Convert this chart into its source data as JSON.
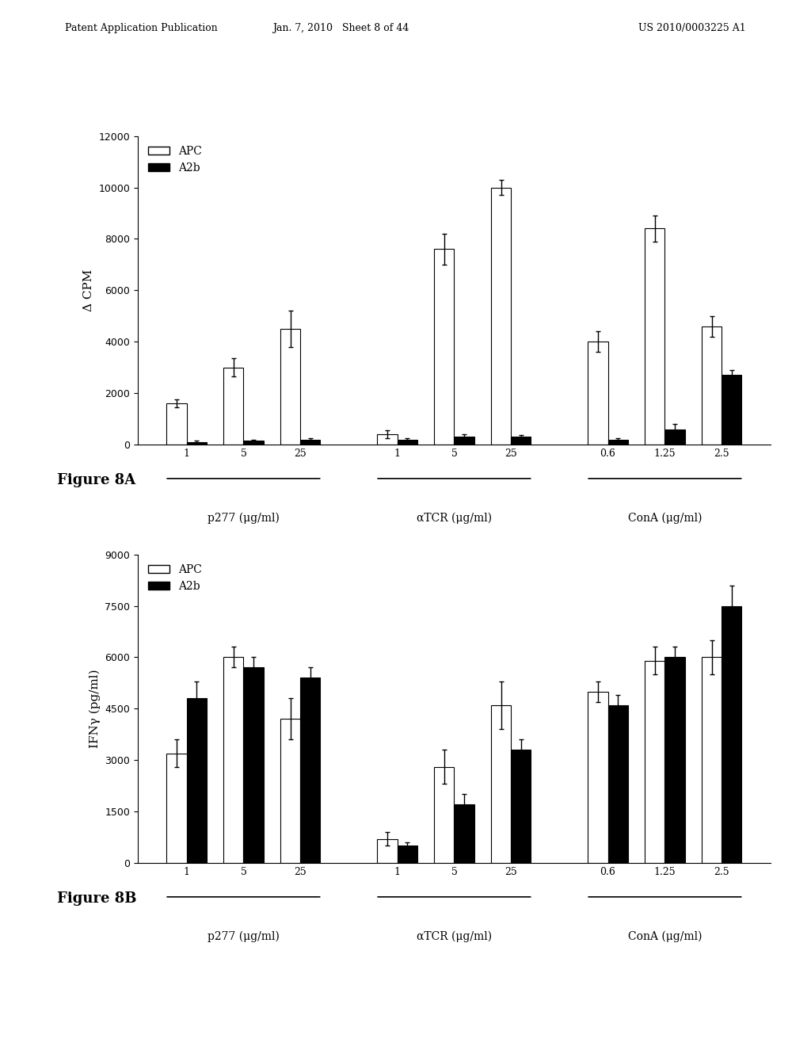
{
  "fig8A": {
    "title": "",
    "ylabel": "Δ CPM",
    "ylim": [
      0,
      12000
    ],
    "yticks": [
      0,
      2000,
      4000,
      6000,
      8000,
      10000,
      12000
    ],
    "groups": [
      {
        "label": "1",
        "APC": 1600,
        "A2b": 100,
        "APC_err": 150,
        "A2b_err": 50
      },
      {
        "label": "5",
        "APC": 3000,
        "A2b": 150,
        "APC_err": 350,
        "A2b_err": 50
      },
      {
        "label": "25",
        "APC": 4500,
        "A2b": 200,
        "APC_err": 700,
        "A2b_err": 50
      },
      {
        "label": "1",
        "APC": 400,
        "A2b": 200,
        "APC_err": 150,
        "A2b_err": 50
      },
      {
        "label": "5",
        "APC": 7600,
        "A2b": 300,
        "APC_err": 600,
        "A2b_err": 100
      },
      {
        "label": "25",
        "APC": 10000,
        "A2b": 300,
        "APC_err": 300,
        "A2b_err": 80
      },
      {
        "label": "0.6",
        "APC": 4000,
        "A2b": 200,
        "APC_err": 400,
        "A2b_err": 60
      },
      {
        "label": "1.25",
        "APC": 8400,
        "A2b": 600,
        "APC_err": 500,
        "A2b_err": 200
      },
      {
        "label": "2.5",
        "APC": 4600,
        "A2b": 2700,
        "APC_err": 400,
        "A2b_err": 200
      }
    ],
    "group_labels": [
      "p277 (μg/ml)",
      "αTCR (μg/ml)",
      "ConA (μg/ml)"
    ],
    "group_sizes": [
      3,
      3,
      3
    ],
    "group_tick_labels": [
      [
        "1",
        "5",
        "25"
      ],
      [
        "1",
        "5",
        "25"
      ],
      [
        "0.6",
        "1.25",
        "2.5"
      ]
    ],
    "figure_label": "Figure 8A"
  },
  "fig8B": {
    "title": "",
    "ylabel": "IFNγ (pg/ml)",
    "ylim": [
      0,
      9000
    ],
    "yticks": [
      0,
      1500,
      3000,
      4500,
      6000,
      7500,
      9000
    ],
    "groups": [
      {
        "label": "1",
        "APC": 3200,
        "A2b": 4800,
        "APC_err": 400,
        "A2b_err": 500
      },
      {
        "label": "5",
        "APC": 6000,
        "A2b": 5700,
        "APC_err": 300,
        "A2b_err": 300
      },
      {
        "label": "25",
        "APC": 4200,
        "A2b": 5400,
        "APC_err": 600,
        "A2b_err": 300
      },
      {
        "label": "1",
        "APC": 700,
        "A2b": 500,
        "APC_err": 200,
        "A2b_err": 100
      },
      {
        "label": "5",
        "APC": 2800,
        "A2b": 1700,
        "APC_err": 500,
        "A2b_err": 300
      },
      {
        "label": "25",
        "APC": 4600,
        "A2b": 3300,
        "APC_err": 700,
        "A2b_err": 300
      },
      {
        "label": "0.6",
        "APC": 5000,
        "A2b": 4600,
        "APC_err": 300,
        "A2b_err": 300
      },
      {
        "label": "1.25",
        "APC": 5900,
        "A2b": 6000,
        "APC_err": 400,
        "A2b_err": 300
      },
      {
        "label": "2.5",
        "APC": 6000,
        "A2b": 7500,
        "APC_err": 500,
        "A2b_err": 600
      }
    ],
    "group_labels": [
      "p277 (μg/ml)",
      "αTCR (μg/ml)",
      "ConA (μg/ml)"
    ],
    "group_sizes": [
      3,
      3,
      3
    ],
    "group_tick_labels": [
      [
        "1",
        "5",
        "25"
      ],
      [
        "1",
        "5",
        "25"
      ],
      [
        "0.6",
        "1.25",
        "2.5"
      ]
    ],
    "figure_label": "Figure 8B"
  },
  "header_left": "Patent Application Publication",
  "header_mid": "Jan. 7, 2010   Sheet 8 of 44",
  "header_right": "US 2010/0003225 A1",
  "bar_width": 0.35,
  "apc_color": "white",
  "a2b_color": "black",
  "edge_color": "black",
  "background_color": "white",
  "font_family": "DejaVu Serif"
}
